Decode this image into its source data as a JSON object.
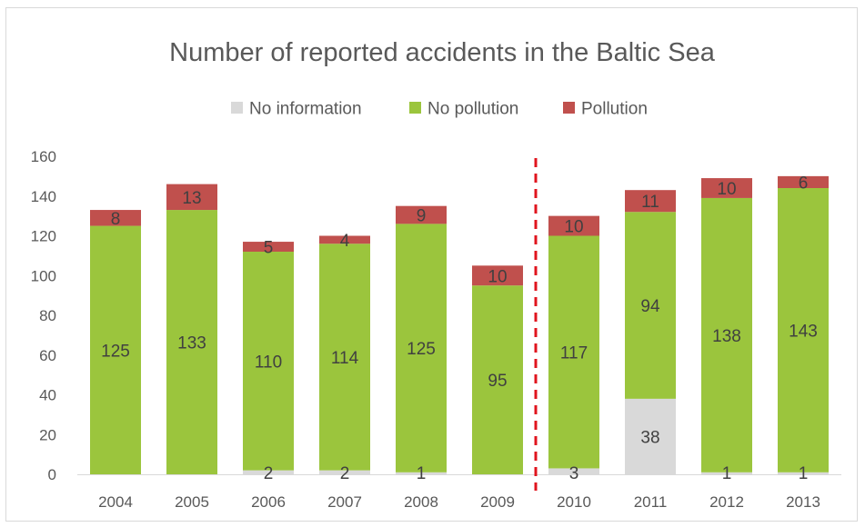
{
  "chart_data": {
    "type": "bar",
    "stacked": true,
    "title": "Number of reported accidents in the Baltic Sea",
    "categories": [
      "2004",
      "2005",
      "2006",
      "2007",
      "2008",
      "2009",
      "2010",
      "2011",
      "2012",
      "2013"
    ],
    "series": [
      {
        "name": "No information",
        "color": "#d9d9d9",
        "values": [
          0,
          0,
          2,
          2,
          1,
          0,
          3,
          38,
          1,
          1
        ],
        "labels": [
          "",
          "",
          "2",
          "2",
          "1",
          "",
          "3",
          "38",
          "1",
          "1"
        ]
      },
      {
        "name": "No pollution",
        "color": "#9bc53d",
        "values": [
          125,
          133,
          110,
          114,
          125,
          95,
          117,
          94,
          138,
          143
        ],
        "labels": [
          "125",
          "133",
          "110",
          "114",
          "125",
          "95",
          "117",
          "94",
          "138",
          "143"
        ]
      },
      {
        "name": "Pollution",
        "color": "#c0504d",
        "values": [
          8,
          13,
          5,
          4,
          9,
          10,
          10,
          11,
          10,
          6
        ],
        "labels": [
          "8",
          "13",
          "5",
          "4",
          "9",
          "10",
          "10",
          "11",
          "10",
          "6"
        ]
      }
    ],
    "ylim": [
      0,
      160
    ],
    "yticks": [
      0,
      20,
      40,
      60,
      80,
      100,
      120,
      140,
      160
    ],
    "grid": false,
    "legend_position": "top",
    "divider_between": [
      "2009",
      "2010"
    ],
    "divider_color": "#e0141e"
  }
}
